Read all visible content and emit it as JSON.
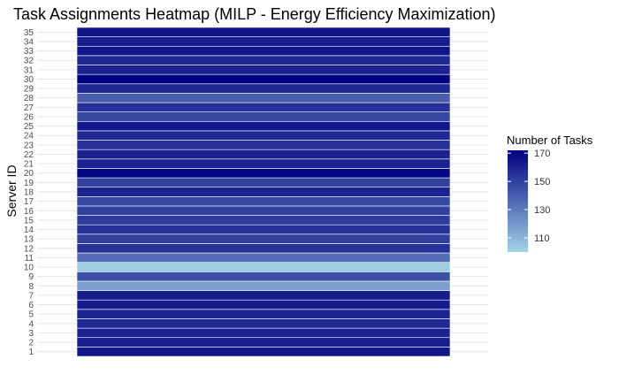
{
  "chart_data": {
    "type": "heatmap",
    "title": "Task Assignments Heatmap (MILP - Energy Efficiency Maximization)",
    "xlabel": "",
    "ylabel": "Server ID",
    "y_categories": [
      "1",
      "2",
      "3",
      "4",
      "5",
      "6",
      "7",
      "8",
      "9",
      "10",
      "11",
      "12",
      "13",
      "14",
      "15",
      "16",
      "17",
      "18",
      "19",
      "20",
      "21",
      "22",
      "23",
      "24",
      "25",
      "26",
      "27",
      "28",
      "29",
      "30",
      "31",
      "32",
      "33",
      "34",
      "35"
    ],
    "values": [
      165,
      162,
      160,
      158,
      160,
      163,
      162,
      118,
      145,
      102,
      135,
      155,
      150,
      155,
      152,
      150,
      148,
      160,
      150,
      170,
      160,
      160,
      155,
      158,
      165,
      148,
      155,
      140,
      158,
      172,
      160,
      158,
      165,
      162,
      165
    ],
    "legend": {
      "title": "Number of Tasks",
      "ticks": [
        110,
        130,
        150,
        170
      ],
      "range": [
        100,
        172
      ],
      "position": "right"
    },
    "colors": {
      "low": "#a1d4e6",
      "high": "#000080",
      "grid": "#e6e6e6"
    },
    "grid": true
  }
}
